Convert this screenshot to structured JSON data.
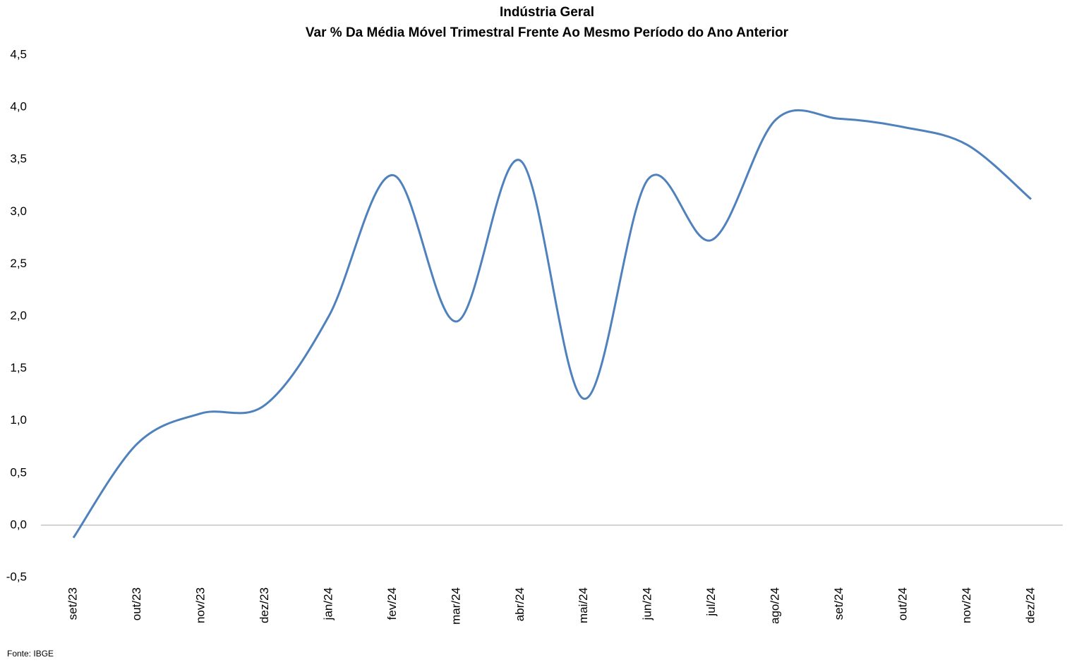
{
  "chart_data": {
    "type": "line",
    "title": "Indústria Geral",
    "subtitle": "Var % Da Média Móvel Trimestral Frente Ao Mesmo Período do Ano Anterior",
    "source": "Fonte: IBGE",
    "categories": [
      "set/23",
      "out/23",
      "nov/23",
      "dez/23",
      "jan/24",
      "fev/24",
      "mar/24",
      "abr/24",
      "mai/24",
      "jun/24",
      "jul/24",
      "ago/24",
      "set/24",
      "out/24",
      "nov/24",
      "dez/24"
    ],
    "values": [
      -0.12,
      0.78,
      1.07,
      1.15,
      2.0,
      3.35,
      1.95,
      3.49,
      1.21,
      3.31,
      2.73,
      3.88,
      3.89,
      3.81,
      3.64,
      3.12
    ],
    "color": "#4f81bd",
    "smooth": true,
    "ylim": [
      -0.5,
      4.5
    ],
    "yticks": [
      {
        "value": -0.5,
        "label": "-0,5"
      },
      {
        "value": 0,
        "label": "0,0"
      },
      {
        "value": 0.5,
        "label": "0,5"
      },
      {
        "value": 1,
        "label": "1,0"
      },
      {
        "value": 1.5,
        "label": "1,5"
      },
      {
        "value": 2,
        "label": "2,0"
      },
      {
        "value": 2.5,
        "label": "2,5"
      },
      {
        "value": 3,
        "label": "3,0"
      },
      {
        "value": 3.5,
        "label": "3,5"
      },
      {
        "value": 4,
        "label": "4,0"
      },
      {
        "value": 4.5,
        "label": "4,5"
      }
    ],
    "grid": false
  }
}
